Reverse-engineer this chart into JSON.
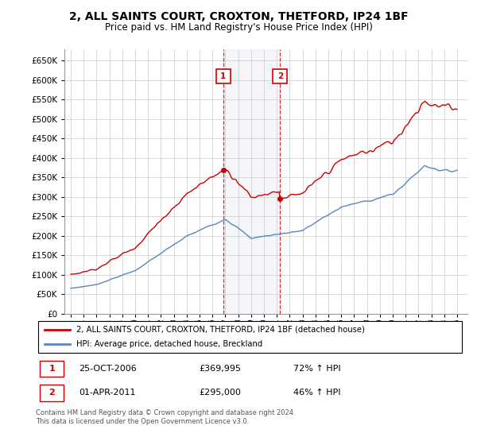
{
  "title": "2, ALL SAINTS COURT, CROXTON, THETFORD, IP24 1BF",
  "subtitle": "Price paid vs. HM Land Registry's House Price Index (HPI)",
  "legend_property": "2, ALL SAINTS COURT, CROXTON, THETFORD, IP24 1BF (detached house)",
  "legend_hpi": "HPI: Average price, detached house, Breckland",
  "property_color": "#cc0000",
  "hpi_color": "#5588bb",
  "marker1_date": "25-OCT-2006",
  "marker1_price": "£369,995",
  "marker1_hpi": "72% ↑ HPI",
  "marker2_date": "01-APR-2011",
  "marker2_price": "£295,000",
  "marker2_hpi": "46% ↑ HPI",
  "ylim_min": 0,
  "ylim_max": 680000,
  "ytick_step": 50000,
  "sale1_year": 2006.82,
  "sale1_price": 369995,
  "sale2_year": 2011.25,
  "sale2_price": 295000,
  "footer": "Contains HM Land Registry data © Crown copyright and database right 2024.\nThis data is licensed under the Open Government Licence v3.0."
}
